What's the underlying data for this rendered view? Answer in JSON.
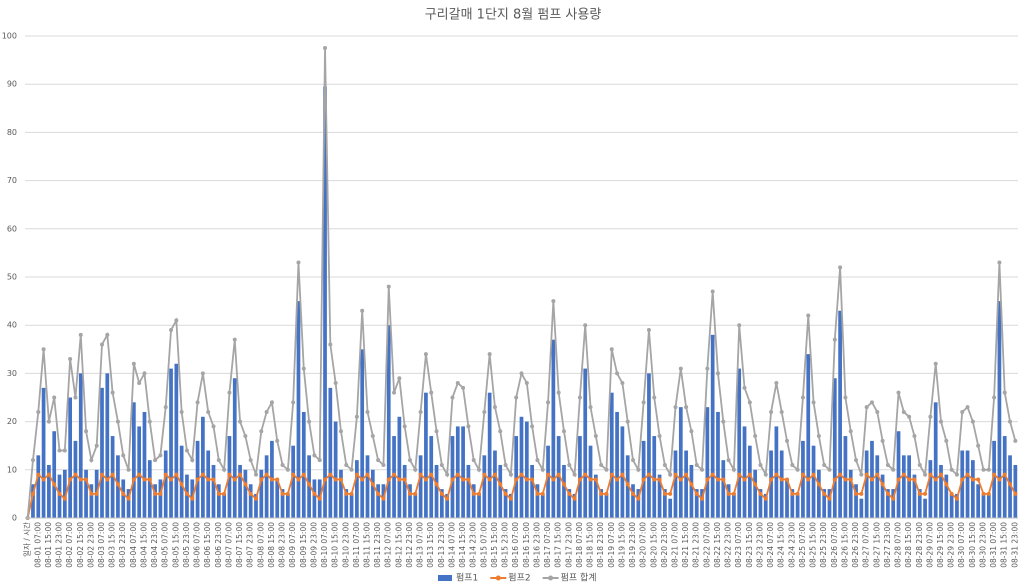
{
  "chart_data": {
    "type": "bar_line",
    "title": "구리갈매 1단지 8월 펌프 사용량",
    "categories": [
      "일자 / 시간",
      null,
      "08-01 07:00",
      null,
      "08-01 15:00",
      null,
      "08-01 23:00",
      null,
      "08-02 07:00",
      null,
      "08-02 15:00",
      null,
      "08-02 23:00",
      null,
      "08-03 07:00",
      null,
      "08-03 15:00",
      null,
      "08-03 23:00",
      null,
      "08-04 07:00",
      null,
      "08-04 15:00",
      null,
      "08-04 23:00",
      null,
      "08-05 07:00",
      null,
      "08-05 15:00",
      null,
      "08-05 23:00",
      null,
      "08-06 07:00",
      null,
      "08-06 15:00",
      null,
      "08-06 23:00",
      null,
      "08-07 07:00",
      null,
      "08-07 15:00",
      null,
      "08-07 23:00",
      null,
      "08-08 07:00",
      null,
      "08-08 15:00",
      null,
      "08-08 23:00",
      null,
      "08-09 07:00",
      null,
      "08-09 15:00",
      null,
      "08-09 23:00",
      null,
      "08-10 07:00",
      null,
      "08-10 15:00",
      null,
      "08-10 23:00",
      null,
      "08-11 07:00",
      null,
      "08-11 15:00",
      null,
      "08-11 23:00",
      null,
      "08-12 07:00",
      null,
      "08-12 15:00",
      null,
      "08-12 23:00",
      null,
      "08-13 07:00",
      null,
      "08-13 15:00",
      null,
      "08-13 23:00",
      null,
      "08-14 07:00",
      null,
      "08-14 15:00",
      null,
      "08-14 23:00",
      null,
      "08-15 07:00",
      null,
      "08-15 15:00",
      null,
      "08-15 23:00",
      null,
      "08-16 07:00",
      null,
      "08-16 15:00",
      null,
      "08-16 23:00",
      null,
      "08-17 07:00",
      null,
      "08-17 15:00",
      null,
      "08-17 23:00",
      null,
      "08-18 07:00",
      null,
      "08-18 15:00",
      null,
      "08-18 23:00",
      null,
      "08-19 07:00",
      null,
      "08-19 15:00",
      null,
      "08-19 23:00",
      null,
      "08-20 07:00",
      null,
      "08-20 15:00",
      null,
      "08-20 23:00",
      null,
      "08-21 07:00",
      null,
      "08-21 15:00",
      null,
      "08-21 23:00",
      null,
      "08-22 07:00",
      null,
      "08-22 15:00",
      null,
      "08-22 23:00",
      null,
      "08-23 07:00",
      null,
      "08-23 15:00",
      null,
      "08-23 23:00",
      null,
      "08-24 07:00",
      null,
      "08-24 15:00",
      null,
      "08-24 23:00",
      null,
      "08-25 07:00",
      null,
      "08-25 15:00",
      null,
      "08-25 23:00",
      null,
      "08-26 07:00",
      null,
      "08-26 15:00",
      null,
      "08-26 23:00",
      null,
      "08-27 07:00",
      null,
      "08-27 15:00",
      null,
      "08-27 23:00",
      null,
      "08-28 07:00",
      null,
      "08-28 15:00",
      null,
      "08-28 23:00",
      null,
      "08-29 07:00",
      null,
      "08-29 15:00",
      null,
      "08-29 23:00",
      null,
      "08-30 07:00",
      null,
      "08-30 15:00",
      null,
      "08-30 23:00",
      null,
      "08-31 07:00",
      null,
      "08-31 15:00",
      null,
      "08-31 23:00"
    ],
    "series": [
      {
        "name": "펌프1",
        "color": "#4472c4",
        "kind": "bar",
        "values": [
          0,
          7,
          13,
          27,
          11,
          18,
          9,
          10,
          25,
          16,
          30,
          10,
          7,
          10,
          27,
          30,
          17,
          13,
          8,
          6,
          24,
          19,
          22,
          12,
          7,
          8,
          14,
          31,
          32,
          15,
          9,
          8,
          16,
          21,
          14,
          11,
          7,
          5,
          17,
          29,
          11,
          10,
          7,
          5,
          10,
          13,
          16,
          8,
          6,
          5,
          15,
          45,
          22,
          13,
          8,
          8,
          89.5,
          27,
          20,
          10,
          6,
          5,
          12,
          35,
          13,
          10,
          7,
          7,
          40,
          17,
          21,
          11,
          7,
          5,
          13,
          26,
          17,
          11,
          6,
          5,
          17,
          19,
          19,
          11,
          7,
          5,
          13,
          26,
          14,
          11,
          6,
          5,
          17,
          21,
          20,
          11,
          7,
          5,
          15,
          37,
          17,
          11,
          6,
          5,
          17,
          31,
          15,
          9,
          6,
          5,
          26,
          22,
          19,
          13,
          7,
          6,
          16,
          30,
          17,
          9,
          6,
          4,
          14,
          23,
          14,
          11,
          6,
          6,
          23,
          38,
          22,
          12,
          7,
          5,
          31,
          19,
          15,
          10,
          6,
          5,
          14,
          19,
          14,
          8,
          6,
          5,
          16,
          34,
          15,
          10,
          6,
          6,
          29,
          43,
          17,
          10,
          7,
          4,
          14,
          16,
          13,
          9,
          6,
          6,
          18,
          13,
          13,
          9,
          6,
          4,
          12,
          24,
          11,
          9,
          5,
          5,
          14,
          14,
          12,
          7,
          5,
          5,
          16,
          45,
          17,
          13,
          11
        ]
      },
      {
        "name": "펌프2",
        "color": "#ed7d31",
        "kind": "line",
        "values": [
          0,
          5,
          9,
          8,
          9,
          7,
          5,
          4,
          8,
          9,
          8,
          8,
          5,
          5,
          9,
          8,
          9,
          7,
          5,
          4,
          8,
          9,
          8,
          8,
          5,
          5,
          9,
          8,
          9,
          7,
          5,
          4,
          8,
          9,
          8,
          8,
          5,
          5,
          9,
          8,
          9,
          7,
          5,
          4,
          8,
          9,
          8,
          8,
          5,
          5,
          9,
          8,
          9,
          7,
          5,
          4,
          8,
          9,
          8,
          8,
          5,
          5,
          9,
          8,
          9,
          7,
          5,
          4,
          8,
          9,
          8,
          8,
          5,
          5,
          9,
          8,
          9,
          7,
          5,
          4,
          8,
          9,
          8,
          8,
          5,
          5,
          9,
          8,
          9,
          7,
          5,
          4,
          8,
          9,
          8,
          8,
          5,
          5,
          9,
          8,
          9,
          7,
          5,
          4,
          8,
          9,
          8,
          8,
          5,
          5,
          9,
          8,
          9,
          7,
          5,
          4,
          8,
          9,
          8,
          8,
          5,
          5,
          9,
          8,
          9,
          7,
          5,
          4,
          8,
          9,
          8,
          8,
          5,
          5,
          9,
          8,
          9,
          7,
          5,
          4,
          8,
          9,
          8,
          8,
          5,
          5,
          9,
          8,
          9,
          7,
          5,
          4,
          8,
          9,
          8,
          8,
          5,
          5,
          9,
          8,
          9,
          7,
          5,
          4,
          8,
          9,
          8,
          8,
          5,
          5,
          9,
          8,
          9,
          7,
          5,
          4,
          8,
          9,
          8,
          8,
          5,
          5,
          9,
          8,
          9,
          7,
          5
        ]
      },
      {
        "name": "펌프 합계",
        "color": "#a5a5a5",
        "kind": "line",
        "values": [
          0,
          12,
          22,
          35,
          20,
          25,
          14,
          14,
          33,
          25,
          38,
          18,
          12,
          15,
          36,
          38,
          26,
          20,
          13,
          10,
          32,
          28,
          30,
          20,
          12,
          13,
          23,
          39,
          41,
          22,
          14,
          12,
          24,
          30,
          22,
          19,
          12,
          10,
          26,
          37,
          20,
          17,
          12,
          9,
          18,
          22,
          24,
          16,
          11,
          10,
          24,
          53,
          31,
          20,
          13,
          12,
          97.5,
          36,
          28,
          18,
          11,
          10,
          21,
          43,
          22,
          17,
          12,
          11,
          48,
          26,
          29,
          19,
          12,
          10,
          22,
          34,
          26,
          18,
          11,
          9,
          25,
          28,
          27,
          19,
          12,
          10,
          22,
          34,
          23,
          18,
          11,
          9,
          25,
          30,
          28,
          19,
          12,
          10,
          24,
          45,
          26,
          18,
          11,
          9,
          25,
          40,
          23,
          17,
          11,
          10,
          35,
          30,
          28,
          20,
          12,
          10,
          24,
          39,
          25,
          17,
          11,
          9,
          23,
          31,
          23,
          18,
          11,
          10,
          31,
          47,
          30,
          20,
          12,
          10,
          40,
          27,
          24,
          17,
          11,
          9,
          22,
          28,
          22,
          16,
          11,
          10,
          25,
          42,
          24,
          17,
          11,
          10,
          37,
          52,
          25,
          18,
          12,
          9,
          23,
          24,
          22,
          16,
          11,
          10,
          26,
          22,
          21,
          17,
          11,
          9,
          21,
          32,
          20,
          16,
          10,
          9,
          22,
          23,
          20,
          15,
          10,
          10,
          25,
          53,
          26,
          20,
          16
        ]
      }
    ],
    "ylim": [
      0,
      100
    ],
    "yticks": [
      0,
      10,
      20,
      30,
      40,
      50,
      60,
      70,
      80,
      90,
      100
    ],
    "grid": true,
    "legend": "bottom"
  }
}
